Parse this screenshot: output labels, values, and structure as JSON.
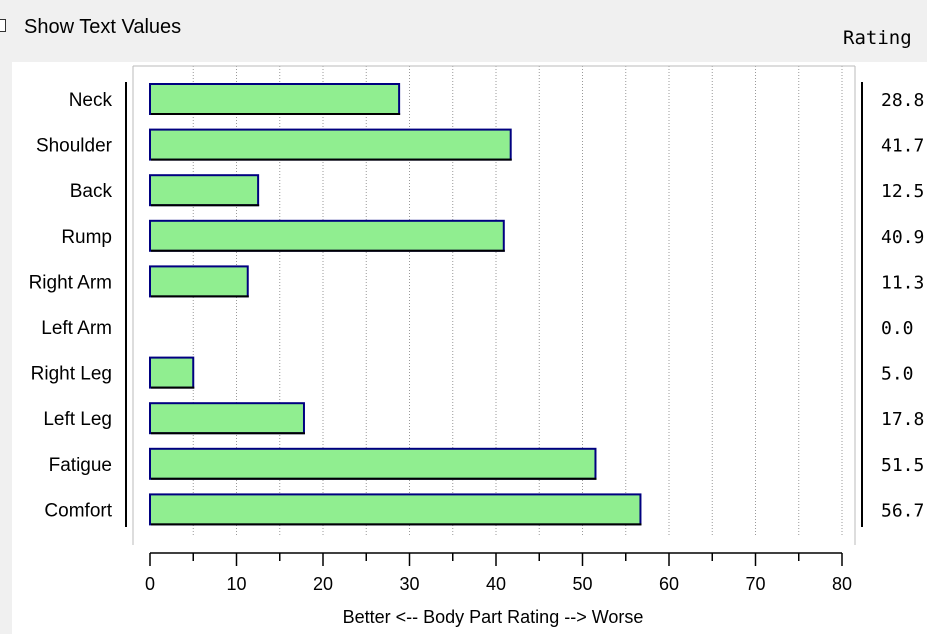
{
  "controls": {
    "show_text_label": "Show Text Values",
    "rating_header": "Rating"
  },
  "colors": {
    "bar_fill": "#90ee90",
    "bar_border": "#000080",
    "grid": "#999999",
    "background": "#ffffff"
  },
  "chart_data": {
    "type": "bar",
    "orientation": "horizontal",
    "categories": [
      "Neck",
      "Shoulder",
      "Back",
      "Rump",
      "Right Arm",
      "Left Arm",
      "Right Leg",
      "Left Leg",
      "Fatigue",
      "Comfort"
    ],
    "values": [
      28.8,
      41.7,
      12.5,
      40.9,
      11.3,
      0.0,
      5.0,
      17.8,
      51.5,
      56.7
    ],
    "value_labels": [
      "28.8",
      "41.7",
      "12.5",
      "40.9",
      "11.3",
      "0.0",
      "5.0",
      "17.8",
      "51.5",
      "56.7"
    ],
    "xlabel": "Better <-- Body Part Rating --> Worse",
    "xlim": [
      0,
      80
    ],
    "xticks": [
      "0",
      "10",
      "20",
      "30",
      "40",
      "50",
      "60",
      "70",
      "80"
    ],
    "grid": "vertical dotted every 5"
  }
}
